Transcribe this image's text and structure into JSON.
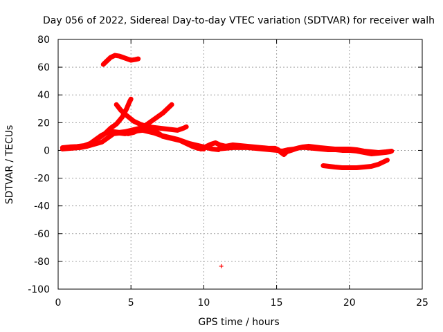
{
  "chart_data": {
    "type": "scatter",
    "title": "Day 056 of 2022, Sidereal Day-to-day VTEC variation (SDTVAR) for receiver walh",
    "xlabel": "GPS time / hours",
    "ylabel": "SDTVAR / TECUs",
    "xlim": [
      0,
      25
    ],
    "ylim": [
      -100,
      80
    ],
    "xticks": [
      0,
      5,
      10,
      15,
      20,
      25
    ],
    "yticks": [
      -100,
      -80,
      -60,
      -40,
      -20,
      0,
      20,
      40,
      60,
      80
    ],
    "xtick_labels": [
      "0",
      "5",
      "10",
      "15",
      "20",
      "25"
    ],
    "ytick_labels": [
      "-100",
      "-80",
      "-60",
      "-40",
      "-20",
      "0",
      "20",
      "40",
      "60",
      "80"
    ],
    "grid": true,
    "marker": "+",
    "color": "#ff0000",
    "series": [
      {
        "name": "high-arc",
        "points": [
          [
            3.1,
            62
          ],
          [
            3.3,
            64
          ],
          [
            3.6,
            67
          ],
          [
            3.9,
            68.5
          ],
          [
            4.2,
            68
          ],
          [
            4.6,
            66.5
          ],
          [
            5.0,
            65
          ],
          [
            5.3,
            65.5
          ],
          [
            5.5,
            66
          ]
        ]
      },
      {
        "name": "base-left",
        "points": [
          [
            0.3,
            2
          ],
          [
            0.8,
            2.5
          ],
          [
            1.3,
            2.8
          ],
          [
            1.8,
            3.5
          ],
          [
            2.2,
            5
          ],
          [
            2.6,
            8
          ],
          [
            3.0,
            11
          ],
          [
            3.4,
            13
          ],
          [
            3.8,
            13.5
          ],
          [
            4.2,
            13
          ],
          [
            4.6,
            13.5
          ],
          [
            5.0,
            14.5
          ],
          [
            5.4,
            15.5
          ],
          [
            5.8,
            16.5
          ],
          [
            6.2,
            17
          ],
          [
            6.6,
            16.5
          ],
          [
            7.0,
            16
          ],
          [
            7.4,
            15.5
          ],
          [
            7.8,
            15
          ],
          [
            8.2,
            14.5
          ],
          [
            8.6,
            16
          ],
          [
            8.8,
            17
          ]
        ]
      },
      {
        "name": "base-left-2",
        "points": [
          [
            0.3,
            1
          ],
          [
            0.9,
            1.5
          ],
          [
            1.5,
            2
          ],
          [
            2.0,
            3
          ],
          [
            2.5,
            4.5
          ],
          [
            3.0,
            6
          ],
          [
            3.4,
            9
          ],
          [
            3.8,
            12
          ],
          [
            4.2,
            12.5
          ],
          [
            4.6,
            12
          ],
          [
            5.0,
            13
          ],
          [
            5.4,
            14
          ],
          [
            5.8,
            14.5
          ],
          [
            6.2,
            13.5
          ],
          [
            6.6,
            12.5
          ],
          [
            7.0,
            11
          ],
          [
            7.4,
            10
          ],
          [
            7.8,
            9
          ],
          [
            8.2,
            8
          ],
          [
            8.6,
            6.5
          ],
          [
            9.0,
            5
          ],
          [
            9.4,
            4
          ],
          [
            9.8,
            3
          ],
          [
            10.2,
            2
          ],
          [
            10.6,
            1
          ],
          [
            11.0,
            0.5
          ]
        ]
      },
      {
        "name": "spike-up",
        "points": [
          [
            2.8,
            9
          ],
          [
            3.2,
            12
          ],
          [
            3.6,
            16
          ],
          [
            4.0,
            19
          ],
          [
            4.4,
            24
          ],
          [
            4.7,
            30
          ],
          [
            4.9,
            35
          ],
          [
            5.0,
            37
          ]
        ]
      },
      {
        "name": "spike-down",
        "points": [
          [
            4.0,
            33
          ],
          [
            4.3,
            29
          ],
          [
            4.6,
            26
          ],
          [
            4.9,
            23.5
          ],
          [
            5.2,
            21
          ],
          [
            5.6,
            19
          ],
          [
            6.0,
            17.5
          ],
          [
            6.4,
            16
          ],
          [
            6.8,
            13
          ],
          [
            7.2,
            10
          ],
          [
            7.6,
            9
          ],
          [
            8.0,
            8
          ],
          [
            8.4,
            7
          ],
          [
            8.8,
            5
          ],
          [
            9.2,
            3
          ],
          [
            9.6,
            1.5
          ],
          [
            10.0,
            1
          ]
        ]
      },
      {
        "name": "rise-right",
        "points": [
          [
            4.8,
            12
          ],
          [
            5.2,
            13
          ],
          [
            5.6,
            15
          ],
          [
            6.0,
            18
          ],
          [
            6.4,
            21
          ],
          [
            6.8,
            24
          ],
          [
            7.2,
            27
          ],
          [
            7.6,
            31
          ],
          [
            7.8,
            33
          ]
        ]
      },
      {
        "name": "mid-right",
        "points": [
          [
            9.8,
            1
          ],
          [
            10.2,
            3
          ],
          [
            10.5,
            4.5
          ],
          [
            10.8,
            5.5
          ],
          [
            11.1,
            4
          ],
          [
            11.5,
            3
          ],
          [
            12.0,
            4
          ],
          [
            12.5,
            3.5
          ],
          [
            13.0,
            3
          ],
          [
            13.5,
            2.5
          ],
          [
            14.0,
            2
          ],
          [
            14.5,
            1.5
          ],
          [
            14.9,
            1.5
          ],
          [
            15.1,
            0.5
          ],
          [
            15.3,
            -1.5
          ],
          [
            15.5,
            -3
          ],
          [
            15.7,
            -1
          ],
          [
            16.0,
            0
          ],
          [
            16.4,
            1.5
          ],
          [
            16.8,
            2.5
          ],
          [
            17.2,
            3
          ],
          [
            17.6,
            2.5
          ],
          [
            18.0,
            2
          ],
          [
            18.5,
            1.5
          ],
          [
            19.0,
            1
          ],
          [
            19.5,
            1
          ],
          [
            20.0,
            1
          ],
          [
            20.5,
            0.5
          ],
          [
            21.0,
            -0.5
          ],
          [
            21.5,
            -1
          ],
          [
            22.0,
            -1.5
          ],
          [
            22.5,
            -1
          ],
          [
            22.9,
            -0.5
          ]
        ]
      },
      {
        "name": "mid-right-2",
        "points": [
          [
            11.0,
            1
          ],
          [
            11.5,
            1.5
          ],
          [
            12.0,
            2
          ],
          [
            12.5,
            2
          ],
          [
            13.0,
            2
          ],
          [
            13.5,
            1.5
          ],
          [
            14.0,
            1
          ],
          [
            14.5,
            0.5
          ],
          [
            15.0,
            0
          ],
          [
            15.4,
            -0.5
          ],
          [
            15.8,
            0.5
          ],
          [
            16.2,
            1
          ],
          [
            16.6,
            2
          ],
          [
            17.0,
            2
          ],
          [
            17.5,
            1.5
          ],
          [
            18.0,
            1
          ],
          [
            18.5,
            0.5
          ],
          [
            19.0,
            0.5
          ],
          [
            19.5,
            0
          ],
          [
            20.0,
            0
          ],
          [
            20.5,
            -0.5
          ],
          [
            21.0,
            -1.5
          ],
          [
            21.5,
            -2.5
          ],
          [
            22.0,
            -2
          ],
          [
            22.5,
            -1.5
          ],
          [
            22.8,
            -1
          ]
        ]
      },
      {
        "name": "low-right",
        "points": [
          [
            18.2,
            -11
          ],
          [
            18.6,
            -11.5
          ],
          [
            19.0,
            -12
          ],
          [
            19.5,
            -12.5
          ],
          [
            20.0,
            -12.5
          ],
          [
            20.5,
            -12.5
          ],
          [
            21.0,
            -12
          ],
          [
            21.5,
            -11.5
          ],
          [
            22.0,
            -10
          ],
          [
            22.4,
            -8
          ],
          [
            22.6,
            -7
          ]
        ]
      },
      {
        "name": "outlier",
        "points": [
          [
            11.2,
            -83.5
          ]
        ]
      }
    ]
  }
}
